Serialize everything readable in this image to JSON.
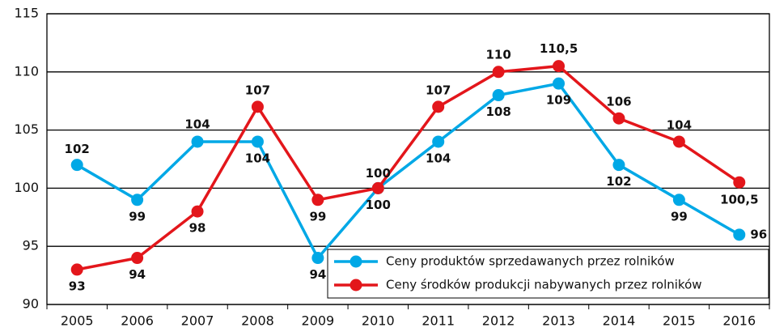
{
  "chart_data": {
    "type": "line",
    "categories": [
      "2005",
      "2006",
      "2007",
      "2008",
      "2009",
      "2010",
      "2011",
      "2012",
      "2013",
      "2014",
      "2015",
      "2016"
    ],
    "series": [
      {
        "name": "Ceny produktów sprzedawanych przez rolników",
        "color": "#00a8e6",
        "values": [
          102,
          99,
          104,
          104,
          94,
          100,
          104,
          108,
          109,
          102,
          99,
          96
        ]
      },
      {
        "name": "Ceny środków produkcji nabywanych przez rolników",
        "color": "#e3161b",
        "values": [
          93,
          94,
          98,
          107,
          99,
          100,
          107,
          110,
          110.5,
          106,
          104,
          100.5
        ],
        "value_labels": [
          "93",
          "94",
          "98",
          "107",
          "99",
          "100",
          "107",
          "110",
          "110,5",
          "106",
          "104",
          "100,5"
        ]
      }
    ],
    "ylim": [
      90,
      115
    ],
    "yticks": [
      90,
      95,
      100,
      105,
      110,
      115
    ],
    "grid": true,
    "legend": "lower right"
  }
}
